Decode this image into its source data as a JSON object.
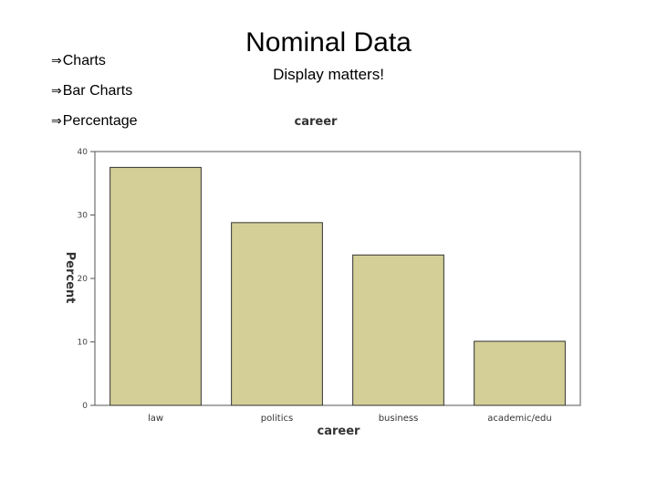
{
  "slide": {
    "bullets": [
      "Charts",
      "Bar Charts",
      "Percentage"
    ],
    "bullet_symbol": "⇒",
    "title": "Nominal Data",
    "subtitle": "Display matters!"
  },
  "chart_data": {
    "type": "bar",
    "title": "career",
    "xlabel": "career",
    "ylabel": "Percent",
    "categories": [
      "law",
      "politics",
      "business",
      "academic/edu"
    ],
    "values": [
      37.5,
      28.8,
      23.7,
      10.1
    ],
    "ylim": [
      0,
      40
    ],
    "yticks": [
      0,
      10,
      20,
      30,
      40
    ],
    "bar_color": "#d4cf96",
    "grid": false
  }
}
